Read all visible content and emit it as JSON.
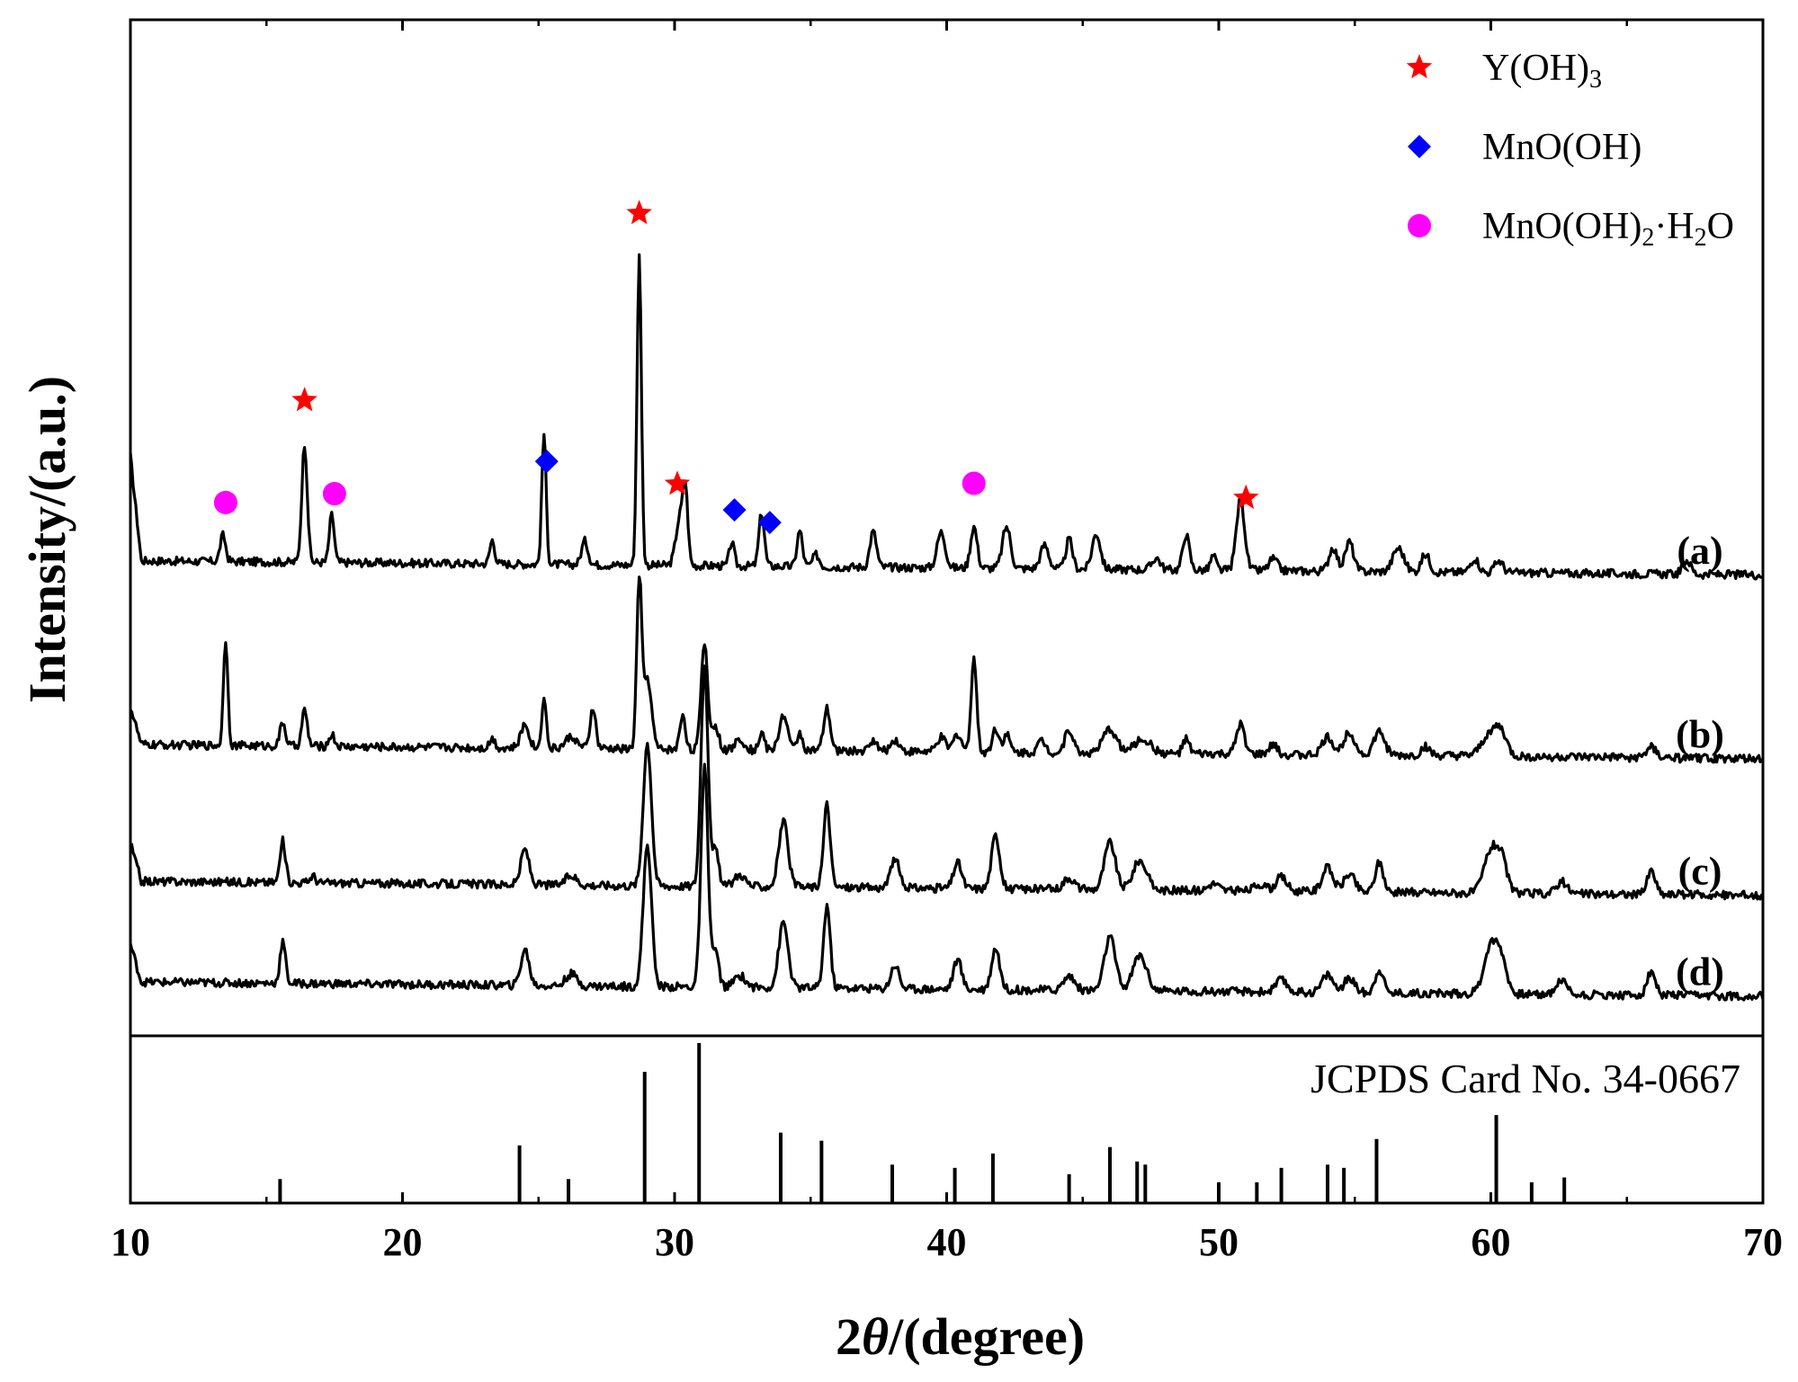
{
  "chart_data": {
    "type": "line",
    "title": "",
    "xlabel_prefix": "2",
    "xlabel_theta": "θ",
    "xlabel_suffix": "/(degree)",
    "ylabel": "Intensity/(a.u.)",
    "xlim": [
      10,
      70
    ],
    "xticks": [
      10,
      20,
      30,
      40,
      50,
      60,
      70
    ],
    "yticks_shown": false,
    "series": [
      {
        "name": "(a)",
        "baseline": 3.55,
        "peaks": [
          [
            13.4,
            0.22,
            0.1
          ],
          [
            16.4,
            1.0,
            0.1
          ],
          [
            17.4,
            0.4,
            0.09
          ],
          [
            23.3,
            0.2,
            0.09
          ],
          [
            25.2,
            1.1,
            0.08
          ],
          [
            26.7,
            0.2,
            0.12
          ],
          [
            28.7,
            2.6,
            0.08
          ],
          [
            30.2,
            0.4,
            0.15
          ],
          [
            30.4,
            0.55,
            0.09
          ],
          [
            32.1,
            0.2,
            0.09
          ],
          [
            33.2,
            0.45,
            0.1
          ],
          [
            34.6,
            0.3,
            0.1
          ],
          [
            35.2,
            0.1,
            0.12
          ],
          [
            37.3,
            0.3,
            0.12
          ],
          [
            39.8,
            0.3,
            0.15
          ],
          [
            41.0,
            0.35,
            0.12
          ],
          [
            42.2,
            0.35,
            0.15
          ],
          [
            43.6,
            0.2,
            0.15
          ],
          [
            44.5,
            0.25,
            0.12
          ],
          [
            45.5,
            0.3,
            0.15
          ],
          [
            47.7,
            0.1,
            0.15
          ],
          [
            48.8,
            0.3,
            0.12
          ],
          [
            49.8,
            0.12,
            0.1
          ],
          [
            50.8,
            0.6,
            0.15
          ],
          [
            52.0,
            0.1,
            0.15
          ],
          [
            54.2,
            0.2,
            0.15
          ],
          [
            54.8,
            0.25,
            0.15
          ],
          [
            56.6,
            0.2,
            0.2
          ],
          [
            57.6,
            0.15,
            0.15
          ],
          [
            59.4,
            0.12,
            0.15
          ],
          [
            60.3,
            0.1,
            0.15
          ],
          [
            67.2,
            0.12,
            0.15
          ]
        ],
        "label_position": "right"
      },
      {
        "name": "(b)",
        "baseline": 2.0,
        "peaks": [
          [
            13.5,
            0.9,
            0.08
          ],
          [
            15.6,
            0.2,
            0.1
          ],
          [
            16.4,
            0.3,
            0.1
          ],
          [
            17.4,
            0.1,
            0.1
          ],
          [
            23.3,
            0.08,
            0.1
          ],
          [
            24.5,
            0.2,
            0.15
          ],
          [
            25.2,
            0.45,
            0.08
          ],
          [
            26.2,
            0.1,
            0.2
          ],
          [
            27.0,
            0.35,
            0.1
          ],
          [
            28.7,
            1.4,
            0.09
          ],
          [
            29.0,
            0.6,
            0.15
          ],
          [
            30.3,
            0.3,
            0.1
          ],
          [
            31.1,
            0.9,
            0.12
          ],
          [
            31.5,
            0.2,
            0.12
          ],
          [
            32.4,
            0.1,
            0.15
          ],
          [
            33.2,
            0.15,
            0.1
          ],
          [
            34.0,
            0.3,
            0.15
          ],
          [
            34.6,
            0.15,
            0.1
          ],
          [
            35.6,
            0.35,
            0.12
          ],
          [
            37.3,
            0.1,
            0.12
          ],
          [
            38.1,
            0.1,
            0.15
          ],
          [
            39.8,
            0.12,
            0.15
          ],
          [
            40.4,
            0.15,
            0.15
          ],
          [
            41.0,
            0.8,
            0.1
          ],
          [
            41.8,
            0.2,
            0.12
          ],
          [
            42.2,
            0.15,
            0.12
          ],
          [
            43.5,
            0.1,
            0.15
          ],
          [
            44.5,
            0.2,
            0.15
          ],
          [
            46.0,
            0.2,
            0.25
          ],
          [
            47.2,
            0.12,
            0.3
          ],
          [
            48.8,
            0.12,
            0.12
          ],
          [
            50.8,
            0.25,
            0.15
          ],
          [
            52.0,
            0.08,
            0.15
          ],
          [
            54.0,
            0.15,
            0.2
          ],
          [
            54.8,
            0.2,
            0.2
          ],
          [
            55.9,
            0.2,
            0.2
          ],
          [
            57.6,
            0.08,
            0.15
          ],
          [
            60.0,
            0.2,
            0.3
          ],
          [
            60.4,
            0.15,
            0.2
          ],
          [
            65.9,
            0.1,
            0.15
          ]
        ],
        "label_position": "right"
      },
      {
        "name": "(c)",
        "baseline": 0.85,
        "peaks": [
          [
            15.6,
            0.35,
            0.1
          ],
          [
            16.7,
            0.06,
            0.1
          ],
          [
            24.5,
            0.3,
            0.15
          ],
          [
            26.2,
            0.08,
            0.2
          ],
          [
            29.0,
            1.2,
            0.15
          ],
          [
            31.1,
            1.85,
            0.13
          ],
          [
            31.5,
            0.3,
            0.12
          ],
          [
            32.4,
            0.1,
            0.2
          ],
          [
            34.0,
            0.55,
            0.17
          ],
          [
            35.6,
            0.7,
            0.12
          ],
          [
            38.1,
            0.25,
            0.15
          ],
          [
            40.4,
            0.22,
            0.15
          ],
          [
            41.8,
            0.45,
            0.15
          ],
          [
            44.5,
            0.1,
            0.2
          ],
          [
            46.0,
            0.4,
            0.2
          ],
          [
            47.1,
            0.25,
            0.25
          ],
          [
            49.8,
            0.06,
            0.2
          ],
          [
            51.5,
            0.06,
            0.2
          ],
          [
            52.3,
            0.12,
            0.2
          ],
          [
            54.0,
            0.2,
            0.2
          ],
          [
            54.8,
            0.15,
            0.2
          ],
          [
            55.9,
            0.25,
            0.15
          ],
          [
            60.0,
            0.35,
            0.25
          ],
          [
            60.4,
            0.25,
            0.2
          ],
          [
            62.6,
            0.1,
            0.2
          ],
          [
            65.9,
            0.2,
            0.15
          ]
        ],
        "label_position": "right"
      },
      {
        "name": "(d)",
        "baseline": 0.0,
        "peaks": [
          [
            15.6,
            0.35,
            0.1
          ],
          [
            24.5,
            0.3,
            0.15
          ],
          [
            26.2,
            0.1,
            0.2
          ],
          [
            29.0,
            1.2,
            0.15
          ],
          [
            31.1,
            1.85,
            0.13
          ],
          [
            31.5,
            0.3,
            0.12
          ],
          [
            32.4,
            0.1,
            0.2
          ],
          [
            34.0,
            0.55,
            0.17
          ],
          [
            35.6,
            0.7,
            0.12
          ],
          [
            38.1,
            0.2,
            0.15
          ],
          [
            40.4,
            0.25,
            0.15
          ],
          [
            41.8,
            0.35,
            0.15
          ],
          [
            44.5,
            0.12,
            0.2
          ],
          [
            46.0,
            0.45,
            0.2
          ],
          [
            47.1,
            0.3,
            0.25
          ],
          [
            52.3,
            0.1,
            0.2
          ],
          [
            54.0,
            0.15,
            0.2
          ],
          [
            54.8,
            0.12,
            0.2
          ],
          [
            55.9,
            0.2,
            0.15
          ],
          [
            60.0,
            0.4,
            0.25
          ],
          [
            60.4,
            0.25,
            0.2
          ],
          [
            62.6,
            0.12,
            0.2
          ],
          [
            65.9,
            0.2,
            0.15
          ]
        ],
        "label_position": "right"
      }
    ],
    "reference": {
      "label": "JCPDS Card No. 34-0667",
      "lines": [
        [
          15.5,
          0.15
        ],
        [
          24.3,
          0.36
        ],
        [
          26.1,
          0.15
        ],
        [
          28.9,
          0.82
        ],
        [
          30.9,
          1.0
        ],
        [
          33.9,
          0.44
        ],
        [
          35.4,
          0.39
        ],
        [
          38.0,
          0.24
        ],
        [
          40.3,
          0.22
        ],
        [
          41.7,
          0.31
        ],
        [
          44.5,
          0.18
        ],
        [
          46.0,
          0.35
        ],
        [
          47.0,
          0.26
        ],
        [
          47.3,
          0.24
        ],
        [
          50.0,
          0.13
        ],
        [
          51.4,
          0.13
        ],
        [
          52.3,
          0.22
        ],
        [
          54.0,
          0.24
        ],
        [
          54.6,
          0.22
        ],
        [
          55.8,
          0.4
        ],
        [
          60.2,
          0.55
        ],
        [
          61.5,
          0.13
        ],
        [
          62.7,
          0.16
        ]
      ]
    },
    "markers": [
      {
        "type": "star",
        "phase": "Y(OH)3",
        "x": 16.4,
        "series": "(a)"
      },
      {
        "type": "star",
        "phase": "Y(OH)3",
        "x": 28.7,
        "series": "(a)"
      },
      {
        "type": "star",
        "phase": "Y(OH)3",
        "x": 30.1,
        "series": "(a)"
      },
      {
        "type": "star",
        "phase": "Y(OH)3",
        "x": 51.0,
        "series": "(a)"
      },
      {
        "type": "diamond",
        "phase": "MnO(OH)",
        "x": 25.3,
        "series": "(a)"
      },
      {
        "type": "diamond",
        "phase": "MnO(OH)",
        "x": 32.2,
        "series": "(a)"
      },
      {
        "type": "diamond",
        "phase": "MnO(OH)",
        "x": 33.5,
        "series": "(a)"
      },
      {
        "type": "circle",
        "phase": "MnO(OH)2·H2O",
        "x": 13.5,
        "series": "(a)"
      },
      {
        "type": "circle",
        "phase": "MnO(OH)2·H2O",
        "x": 17.5,
        "series": "(a)"
      },
      {
        "type": "circle",
        "phase": "MnO(OH)2·H2O",
        "x": 41.0,
        "series": "(a)"
      }
    ],
    "legend": {
      "placement": "top-right",
      "entries": [
        {
          "marker": "star",
          "color": "#ff0000",
          "text_main": "Y(OH)",
          "text_sub": "3",
          "text_after": ""
        },
        {
          "marker": "diamond",
          "color": "#0000ff",
          "text_main": "MnO(OH)",
          "text_sub": "",
          "text_after": ""
        },
        {
          "marker": "circle",
          "color": "#ff00ff",
          "text_main": "MnO(OH)",
          "text_sub": "2",
          "text_after": "·H",
          "text_sub2": "2",
          "text_end": "O"
        }
      ]
    },
    "colors": {
      "star": "#ff0000",
      "diamond": "#0000ff",
      "circle": "#ff00ff",
      "line": "#000000"
    }
  }
}
